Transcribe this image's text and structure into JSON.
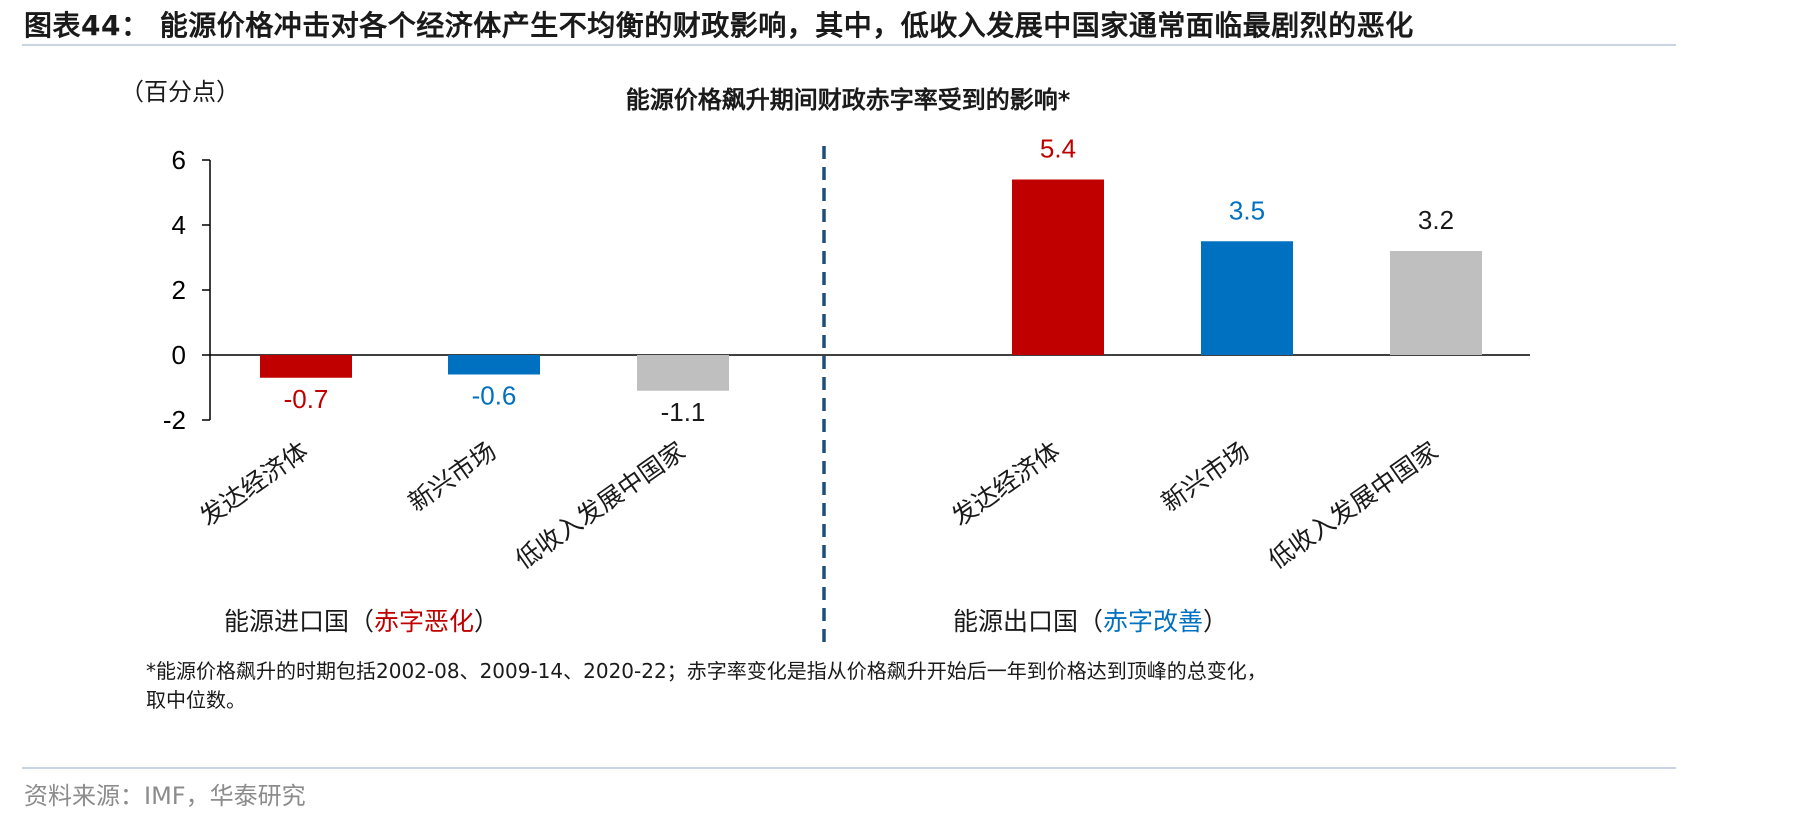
{
  "figure_title": "图表44：  能源价格冲击对各个经济体产生不均衡的财政影响，其中，低收入发展中国家通常面临最剧烈的恶化",
  "source": "资料来源：IMF，华泰研究",
  "note_lines": [
    "*能源价格飙升的时期包括2002-08、2009-14、2020-22；赤字率变化是指从价格飙升开始后一年到价格达到顶峰的总变化，",
    "取中位数。"
  ],
  "colors": {
    "developed": "#c00000",
    "emerging": "#0070c0",
    "low_income": "#bfbfbf",
    "divider": "#1f4e79",
    "label_dark": "#1a1a1a"
  },
  "chart_data": {
    "type": "bar",
    "title": "能源价格飙升期间财政赤字率受到的影响*",
    "ylabel": "（百分点）",
    "ylim": [
      -2,
      6
    ],
    "yticks": [
      6,
      4,
      2,
      0,
      -2
    ],
    "groups": [
      {
        "label_prefix": "能源进口国（",
        "label_highlight": "赤字恶化",
        "label_suffix": "）",
        "highlight_color": "#c00000",
        "categories": [
          "发达经济体",
          "新兴市场",
          "低收入发展中国家"
        ],
        "values": [
          -0.7,
          -0.6,
          -1.1
        ],
        "value_labels": [
          "-0.7",
          "-0.6",
          "-1.1"
        ]
      },
      {
        "label_prefix": "能源出口国（",
        "label_highlight": "赤字改善",
        "label_suffix": "）",
        "highlight_color": "#0070c0",
        "categories": [
          "发达经济体",
          "新兴市场",
          "低收入发展中国家"
        ],
        "values": [
          5.4,
          3.5,
          3.2
        ],
        "value_labels": [
          "5.4",
          "3.5",
          "3.2"
        ]
      }
    ]
  }
}
